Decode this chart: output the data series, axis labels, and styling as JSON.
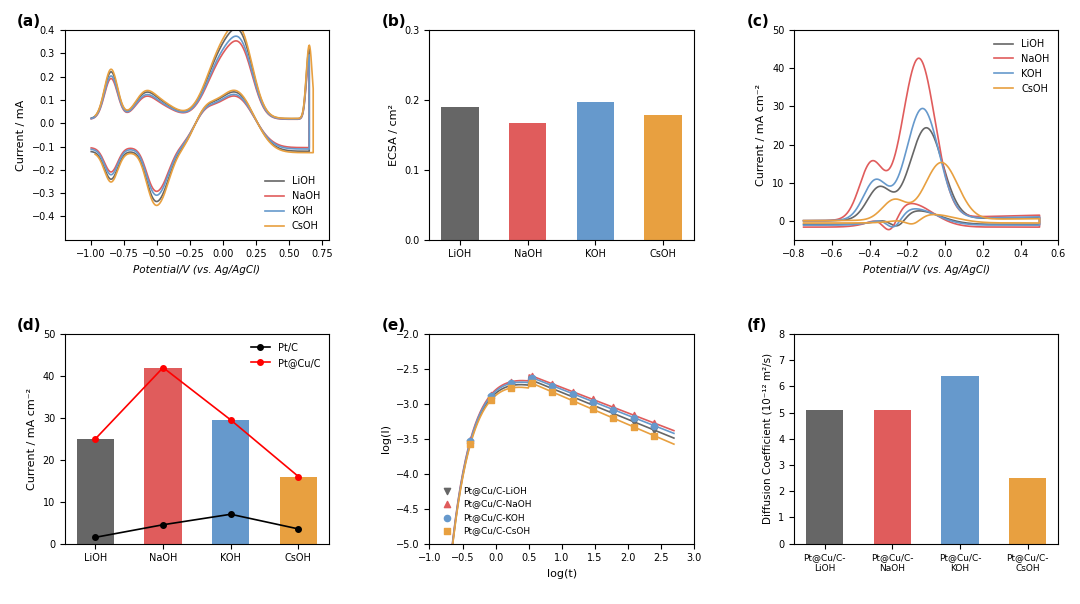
{
  "colors": {
    "LiOH": "#666666",
    "NaOH": "#e05c5c",
    "KOH": "#6699cc",
    "CsOH": "#e8a040"
  },
  "panel_a": {
    "title": "(a)",
    "xlabel": "Potential/V (vs. Ag/AgCl)",
    "ylabel": "Current / mA",
    "xlim": [
      -1.2,
      0.8
    ],
    "ylim": [
      -0.5,
      0.4
    ]
  },
  "panel_b": {
    "title": "(b)",
    "xlabel": "",
    "ylabel": "ECSA / cm²",
    "categories": [
      "LiOH",
      "NaOH",
      "KOH",
      "CsOH"
    ],
    "values": [
      0.19,
      0.167,
      0.197,
      0.179
    ],
    "ylim": [
      0.0,
      0.3
    ]
  },
  "panel_c": {
    "title": "(c)",
    "xlabel": "Potential/V (vs. Ag/AgCl)",
    "ylabel": "Current / mA cm⁻²",
    "xlim": [
      -0.8,
      0.6
    ],
    "ylim": [
      -5,
      50
    ]
  },
  "panel_d": {
    "title": "(d)",
    "xlabel": "",
    "ylabel": "Current / mA cm⁻²",
    "categories": [
      "LiOH",
      "NaOH",
      "KOH",
      "CsOH"
    ],
    "bar_values_ptcuc": [
      25,
      42,
      29.5,
      16
    ],
    "bar_values_ptc": [
      1.5,
      4.5,
      7,
      3.5
    ],
    "ylim": [
      0,
      50
    ]
  },
  "panel_e": {
    "title": "(e)",
    "xlabel": "log(t)",
    "ylabel": "log(I)",
    "xlim": [
      -1,
      3
    ],
    "ylim": [
      -5.0,
      -2.0
    ]
  },
  "panel_f": {
    "title": "(f)",
    "xlabel": "",
    "ylabel": "Diffusion Coefficient (10⁻¹² m²/s)",
    "categories": [
      "Pt@Cu/C-LiOH",
      "Pt@Cu/C-NaOH",
      "Pt@Cu/C-KOH",
      "Pt@Cu/C-CsOH"
    ],
    "values": [
      5.1,
      5.1,
      6.4,
      2.5
    ],
    "ylim": [
      0,
      8
    ]
  }
}
